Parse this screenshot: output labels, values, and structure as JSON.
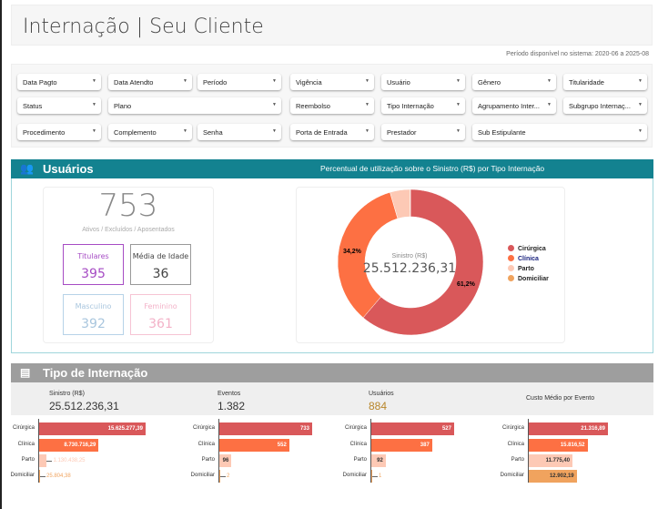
{
  "title": "Internação | Seu Cliente",
  "periodo": "Período disponível no sistema: 2020-06 a 2025-08",
  "filters": [
    "Data Pagto",
    "Data Atendto",
    "Período",
    "Vigência",
    "Usuário",
    "Gênero",
    "Titularidade",
    "Status",
    "Plano",
    "Reembolso",
    "Tipo Internação",
    "Agrupamento Inter...",
    "Subgrupo Internaç...",
    "Procedimento",
    "Complemento",
    "Senha",
    "Porta de Entrada",
    "Prestador",
    "Sub Estipulante"
  ],
  "usuarios": {
    "title": "Usuários",
    "icon": "users-icon",
    "subtitle": "Percentual de utilização sobre o Sinistro (R$) por Tipo Internação",
    "total": "753",
    "total_label": "Ativos / Excluídos / Aposentados",
    "titulares_label": "Titulares",
    "titulares": "395",
    "idade_label": "Média de Idade",
    "idade": "36",
    "masculino_label": "Masculino",
    "masculino": "392",
    "feminino_label": "Feminino",
    "feminino": "361"
  },
  "donut": {
    "center_label": "Sinistro (R$)",
    "center_value": "25.512.236,31",
    "labels": [
      "34,2%",
      "61,2%"
    ]
  },
  "tipo": {
    "title": "Tipo de Internação",
    "icon": "document-icon",
    "stats": [
      {
        "label": "Sinistro (R$)",
        "value": "25.512.236,31"
      },
      {
        "label": "Eventos",
        "value": "1.382"
      },
      {
        "label": "Usuários",
        "value": "884"
      },
      {
        "label": "Custo Médio por Evento",
        "value": ""
      }
    ]
  },
  "chart_data": {
    "type": "bar",
    "categories": [
      "Cirúrgica",
      "Clínica",
      "Parto",
      "Domiciliar"
    ],
    "colors": [
      "#d9585a",
      "#fd7043",
      "#fdc9b5",
      "#f0a35e"
    ],
    "series": [
      {
        "name": "Sinistro (R$)",
        "values": [
          15625277.39,
          8730716.29,
          1130438.25,
          25804.38
        ],
        "labels": [
          "15.625.277,39",
          "8.730.716,29",
          "1.130.438,25",
          "25.804,38"
        ]
      },
      {
        "name": "Eventos",
        "values": [
          733,
          552,
          96,
          2
        ],
        "labels": [
          "733",
          "552",
          "96",
          "2"
        ]
      },
      {
        "name": "Usuários",
        "values": [
          527,
          387,
          92,
          1
        ],
        "labels": [
          "527",
          "387",
          "92",
          "1"
        ]
      },
      {
        "name": "Custo Médio por Evento",
        "values": [
          21316.89,
          15816.52,
          11775.4,
          12902.19
        ],
        "labels": [
          "21.316,89",
          "15.816,52",
          "11.775,40",
          "12.902,19"
        ]
      }
    ]
  }
}
